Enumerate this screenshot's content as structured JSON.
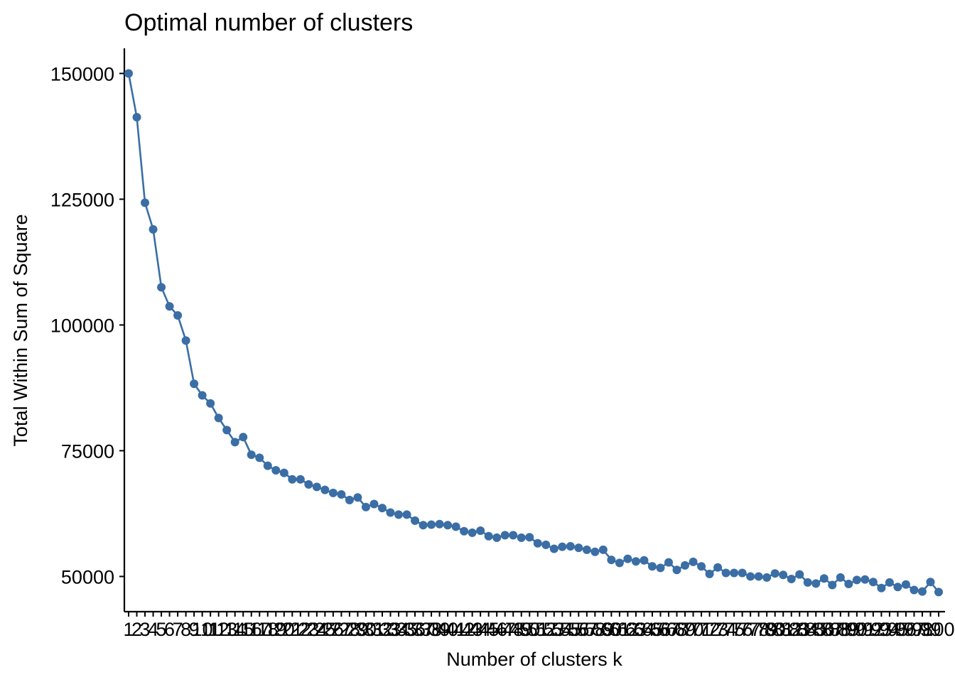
{
  "chart_data": {
    "type": "line",
    "title": "Optimal number of clusters",
    "xlabel": "Number of clusters k",
    "ylabel": "Total Within Sum of Square",
    "ylim": [
      43000,
      155000
    ],
    "y_ticks": [
      50000,
      75000,
      100000,
      125000,
      150000
    ],
    "grid": false,
    "colors": {
      "series": "#3A6EA5",
      "axis": "#000000"
    },
    "series": [
      {
        "x": [
          1,
          2,
          3,
          4,
          5,
          6,
          7,
          8,
          9,
          10,
          11,
          12,
          13,
          14,
          15,
          16,
          17,
          18,
          19,
          20,
          21,
          22,
          23,
          24,
          25,
          26,
          27,
          28,
          29,
          30,
          31,
          32,
          33,
          34,
          35,
          36,
          37,
          38,
          39,
          40,
          41,
          42,
          43,
          44,
          45,
          46,
          47,
          48,
          49,
          50,
          51,
          52,
          53,
          54,
          55,
          56,
          57,
          58,
          59,
          60,
          61,
          62,
          63,
          64,
          65,
          66,
          67,
          68,
          69,
          70,
          71,
          72,
          73,
          74,
          75,
          76,
          77,
          78,
          79,
          80,
          81,
          82,
          83,
          84,
          85,
          86,
          87,
          88,
          89,
          90,
          91,
          92,
          93,
          94,
          95,
          96,
          97,
          98,
          99,
          100
        ],
        "values": [
          150000,
          141300,
          124300,
          119000,
          107500,
          103700,
          101900,
          96900,
          88300,
          86000,
          84400,
          81500,
          79100,
          76700,
          77700,
          74200,
          73600,
          72000,
          71100,
          70600,
          69300,
          69300,
          68300,
          67800,
          67200,
          66600,
          66300,
          65200,
          65700,
          63800,
          64400,
          63600,
          62700,
          62300,
          62300,
          61100,
          60200,
          60300,
          60400,
          60200,
          59900,
          59000,
          58700,
          59100,
          58000,
          57700,
          58200,
          58200,
          57700,
          57800,
          56600,
          56300,
          55500,
          55900,
          56000,
          55700,
          55300,
          54900,
          55300,
          53300,
          52700,
          53500,
          53000,
          53200,
          52000,
          51700,
          52800,
          51300,
          52200,
          52900,
          52000,
          50500,
          51800,
          50700,
          50700,
          50700,
          50000,
          50000,
          49800,
          50600,
          50300,
          49500,
          50400,
          48800,
          48600,
          49600,
          48300,
          49800,
          48500,
          49300,
          49400,
          48900,
          47700,
          48800,
          47900,
          48400,
          47300,
          47000,
          48900,
          46900
        ]
      }
    ]
  }
}
